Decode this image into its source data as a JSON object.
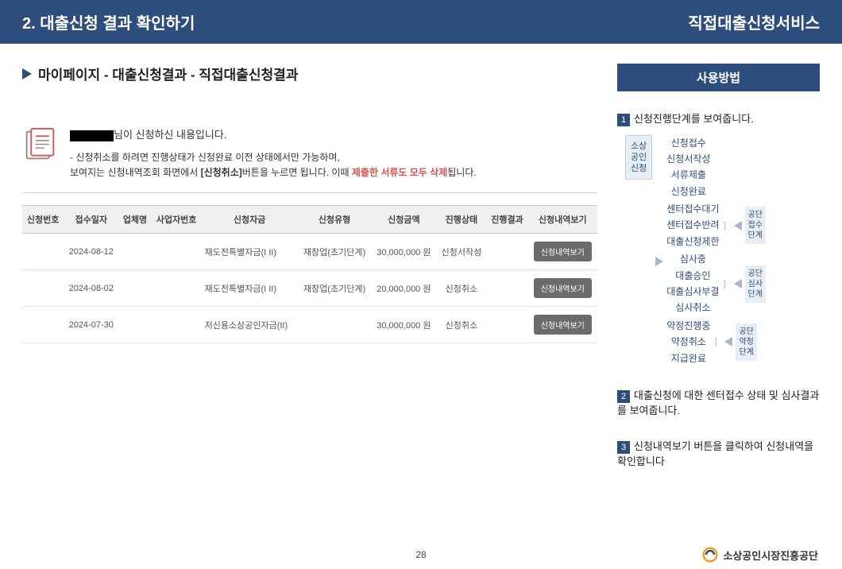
{
  "header": {
    "left": "2. 대출신청 결과 확인하기",
    "right": "직접대출신청서비스"
  },
  "breadcrumb": "마이페이지 - 대출신청결과 - 직접대출신청결과",
  "info": {
    "title_suffix": "님이 신청하신 내용입니다.",
    "line1": "- 신청취소를 하려면 진행상태가 신청완료 이전 상태에서만 가능하며,",
    "line2a": "보여지는 신청내역조회 화면에서 ",
    "line2b": "[신청취소]",
    "line2c": "버튼을 누르면 됩니다. 이때 ",
    "line2d": "제출한 서류도 모두 삭제",
    "line2e": "됩니다."
  },
  "table": {
    "headers": [
      "신청번호",
      "접수일자",
      "업체명",
      "사업자번호",
      "신청자금",
      "신청유형",
      "신청금액",
      "진행상태",
      "진행결과",
      "신청내역보기"
    ],
    "rows": [
      {
        "date": "2024-08-12",
        "fund": "재도전특별자금(I II)",
        "type": "재창업(초기단계)",
        "amount": "30,000,000 원",
        "status": "신청서작성",
        "btn": "신청내역보기"
      },
      {
        "date": "2024-08-02",
        "fund": "재도전특별자금(I II)",
        "type": "재창업(초기단계)",
        "amount": "20,000,000 원",
        "status": "신청취소",
        "btn": "신청내역보기"
      },
      {
        "date": "2024-07-30",
        "fund": "저신용소상공인자금(II)",
        "type": "",
        "amount": "30,000,000 원",
        "status": "신청취소",
        "btn": "신청내역보기"
      }
    ]
  },
  "usage": {
    "title": "사용방법",
    "step1": "신청진행단계를 보여줍니다.",
    "step2": "대출신청에 대한 센터접수 상태 및 심사결과를 보여줍니다.",
    "step3": "신청내역보기 버튼을 클릭하여 신청내역을 확인합니다",
    "origin_box": "소상\n공인\n신청",
    "group0": {
      "items": [
        "신청접수",
        "신청서작성",
        "서류제출",
        "신청완료"
      ]
    },
    "group1": {
      "items": [
        "센터접수대기",
        "센터접수반려",
        "대출신청제한"
      ],
      "label": "공단\n접수\n단계"
    },
    "group2": {
      "items": [
        "심사중",
        "대출승인",
        "대출심사부결",
        "심사취소"
      ],
      "label": "공단\n심사\n단계"
    },
    "group3": {
      "items": [
        "약정진행중",
        "약정취소",
        "지급완료"
      ],
      "label": "공단\n약정\n단계"
    }
  },
  "footer": {
    "page": "28",
    "org": "소상공인시장진흥공단"
  },
  "colors": {
    "primary": "#2d4e7c",
    "btn": "#6b6b6b",
    "red": "#d9534f"
  }
}
